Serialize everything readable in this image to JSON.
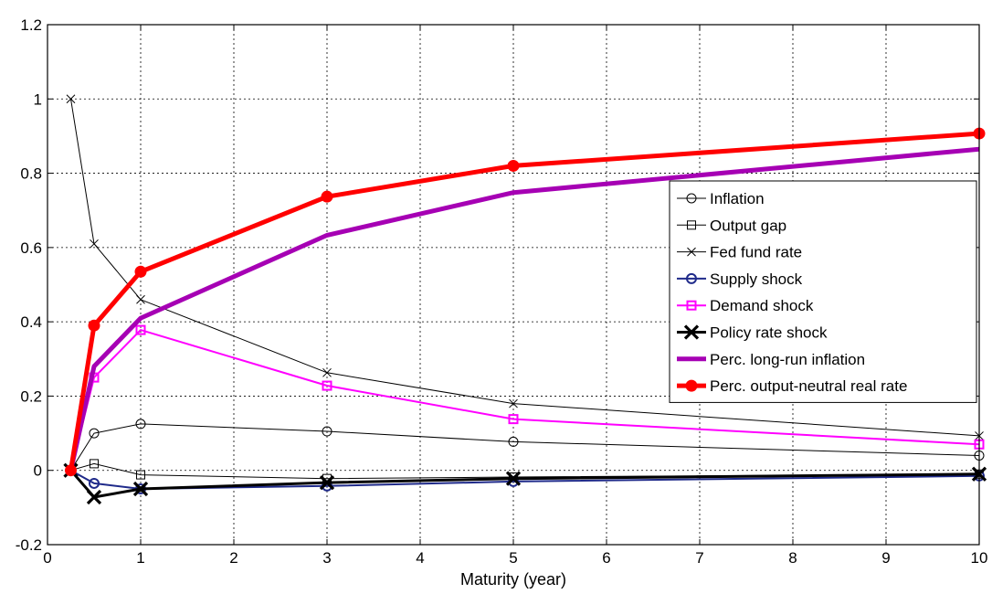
{
  "chart_data": {
    "type": "line",
    "title": "",
    "xlabel": "Maturity (year)",
    "ylabel": "",
    "xlim": [
      0,
      10
    ],
    "ylim": [
      -0.2,
      1.2
    ],
    "xticks": [
      "0",
      "1",
      "2",
      "3",
      "4",
      "5",
      "6",
      "7",
      "8",
      "9",
      "10"
    ],
    "yticks": [
      "-0.2",
      "0",
      "0.2",
      "0.4",
      "0.6",
      "0.8",
      "1",
      "1.2"
    ],
    "grid": true,
    "legend_position": "right",
    "x": [
      0.25,
      0.5,
      1,
      3,
      5,
      10
    ],
    "series": [
      {
        "name": "Inflation",
        "values": [
          0.0,
          0.1,
          0.125,
          0.105,
          0.077,
          0.04
        ],
        "color": "#000000",
        "marker": "circle-open",
        "weight": "thin"
      },
      {
        "name": "Output gap",
        "values": [
          0.0,
          0.018,
          -0.012,
          -0.022,
          -0.018,
          -0.01
        ],
        "color": "#000000",
        "marker": "square-open",
        "weight": "thin"
      },
      {
        "name": "Fed fund rate",
        "values": [
          1.0,
          0.61,
          0.46,
          0.263,
          0.18,
          0.093
        ],
        "color": "#000000",
        "marker": "x",
        "weight": "thin"
      },
      {
        "name": "Supply shock",
        "values": [
          0.0,
          -0.035,
          -0.05,
          -0.042,
          -0.03,
          -0.015
        ],
        "color": "#1f2a8a",
        "marker": "circle-open",
        "weight": "medium"
      },
      {
        "name": "Demand shock",
        "values": [
          0.0,
          0.25,
          0.378,
          0.228,
          0.138,
          0.07
        ],
        "color": "#ff00ff",
        "marker": "square-open",
        "weight": "medium"
      },
      {
        "name": "Policy rate shock",
        "values": [
          0.0,
          -0.072,
          -0.05,
          -0.033,
          -0.022,
          -0.01
        ],
        "color": "#000000",
        "marker": "x-bold",
        "weight": "bold"
      },
      {
        "name": "Perc. long-run inflation",
        "values": [
          0.0,
          0.28,
          0.41,
          0.633,
          0.748,
          0.865
        ],
        "color": "#a600b4",
        "marker": "none",
        "weight": "heavy"
      },
      {
        "name": "Perc. output-neutral real rate",
        "values": [
          0.0,
          0.39,
          0.535,
          0.737,
          0.82,
          0.907
        ],
        "color": "#ff0000",
        "marker": "dot-filled",
        "weight": "heavy"
      }
    ]
  }
}
